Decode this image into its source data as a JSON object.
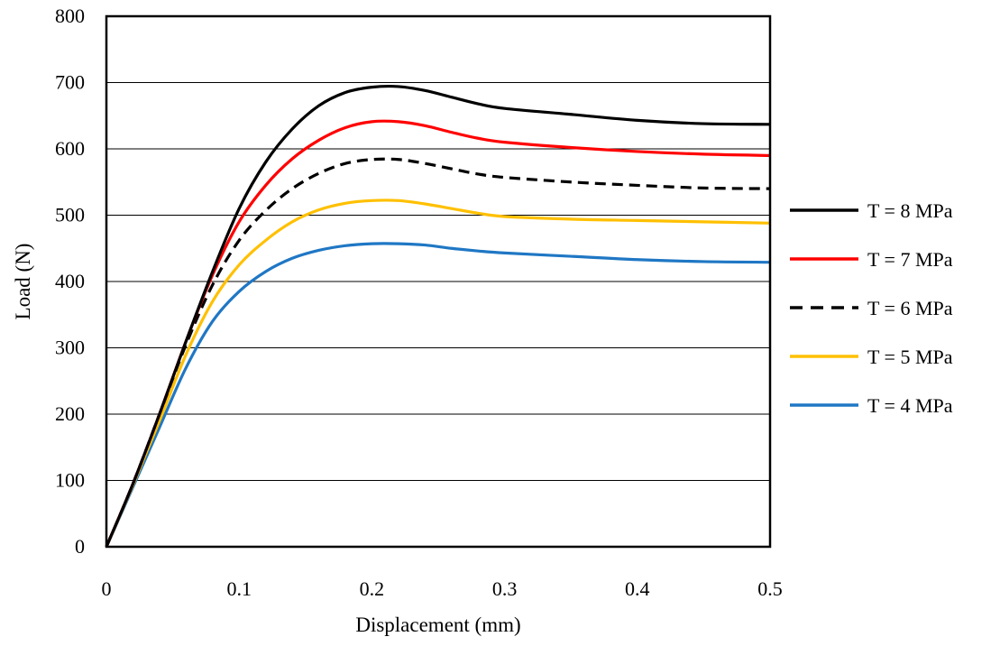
{
  "chart_data": {
    "type": "line",
    "title": "",
    "xlabel": "Displacement (mm)",
    "ylabel": "Load (N)",
    "xlim": [
      0,
      0.5
    ],
    "ylim": [
      0,
      800
    ],
    "x_ticks": [
      0,
      0.1,
      0.2,
      0.3,
      0.4,
      0.5
    ],
    "y_ticks": [
      0,
      100,
      200,
      300,
      400,
      500,
      600,
      700,
      800
    ],
    "grid": "horizontal",
    "legend_position": "right",
    "series": [
      {
        "name": "T = 8 MPa",
        "color": "#000000",
        "dash": "solid",
        "points": [
          [
            0,
            0
          ],
          [
            0.02,
            95
          ],
          [
            0.04,
            200
          ],
          [
            0.06,
            310
          ],
          [
            0.08,
            415
          ],
          [
            0.1,
            510
          ],
          [
            0.12,
            580
          ],
          [
            0.14,
            630
          ],
          [
            0.16,
            665
          ],
          [
            0.18,
            685
          ],
          [
            0.2,
            693
          ],
          [
            0.22,
            694
          ],
          [
            0.24,
            688
          ],
          [
            0.26,
            678
          ],
          [
            0.28,
            668
          ],
          [
            0.3,
            661
          ],
          [
            0.35,
            652
          ],
          [
            0.4,
            643
          ],
          [
            0.45,
            638
          ],
          [
            0.5,
            637
          ]
        ]
      },
      {
        "name": "T = 7 MPa",
        "color": "#ff0000",
        "dash": "solid",
        "points": [
          [
            0,
            0
          ],
          [
            0.02,
            95
          ],
          [
            0.04,
            200
          ],
          [
            0.06,
            310
          ],
          [
            0.08,
            410
          ],
          [
            0.1,
            490
          ],
          [
            0.12,
            545
          ],
          [
            0.14,
            585
          ],
          [
            0.16,
            613
          ],
          [
            0.18,
            632
          ],
          [
            0.2,
            641
          ],
          [
            0.22,
            641
          ],
          [
            0.24,
            635
          ],
          [
            0.26,
            625
          ],
          [
            0.28,
            616
          ],
          [
            0.3,
            610
          ],
          [
            0.35,
            602
          ],
          [
            0.4,
            596
          ],
          [
            0.45,
            592
          ],
          [
            0.5,
            590
          ]
        ]
      },
      {
        "name": "T = 6 MPa",
        "color": "#000000",
        "dash": "dashed",
        "points": [
          [
            0,
            0
          ],
          [
            0.02,
            95
          ],
          [
            0.04,
            200
          ],
          [
            0.06,
            305
          ],
          [
            0.08,
            395
          ],
          [
            0.1,
            462
          ],
          [
            0.12,
            507
          ],
          [
            0.14,
            540
          ],
          [
            0.16,
            563
          ],
          [
            0.18,
            578
          ],
          [
            0.2,
            584
          ],
          [
            0.22,
            584
          ],
          [
            0.24,
            578
          ],
          [
            0.26,
            570
          ],
          [
            0.28,
            562
          ],
          [
            0.3,
            557
          ],
          [
            0.35,
            550
          ],
          [
            0.4,
            545
          ],
          [
            0.45,
            541
          ],
          [
            0.5,
            540
          ]
        ]
      },
      {
        "name": "T = 5 MPa",
        "color": "#ffc000",
        "dash": "solid",
        "points": [
          [
            0,
            0
          ],
          [
            0.02,
            93
          ],
          [
            0.04,
            190
          ],
          [
            0.06,
            290
          ],
          [
            0.08,
            370
          ],
          [
            0.1,
            425
          ],
          [
            0.12,
            462
          ],
          [
            0.14,
            490
          ],
          [
            0.16,
            508
          ],
          [
            0.18,
            518
          ],
          [
            0.2,
            522
          ],
          [
            0.22,
            522
          ],
          [
            0.24,
            517
          ],
          [
            0.26,
            510
          ],
          [
            0.28,
            503
          ],
          [
            0.3,
            498
          ],
          [
            0.35,
            494
          ],
          [
            0.4,
            492
          ],
          [
            0.45,
            490
          ],
          [
            0.5,
            488
          ]
        ]
      },
      {
        "name": "T = 4 MPa",
        "color": "#1f77c4",
        "dash": "solid",
        "points": [
          [
            0,
            0
          ],
          [
            0.02,
            90
          ],
          [
            0.04,
            180
          ],
          [
            0.06,
            270
          ],
          [
            0.08,
            340
          ],
          [
            0.1,
            385
          ],
          [
            0.12,
            415
          ],
          [
            0.14,
            435
          ],
          [
            0.16,
            447
          ],
          [
            0.18,
            454
          ],
          [
            0.2,
            457
          ],
          [
            0.22,
            457
          ],
          [
            0.24,
            455
          ],
          [
            0.26,
            450
          ],
          [
            0.28,
            446
          ],
          [
            0.3,
            443
          ],
          [
            0.35,
            438
          ],
          [
            0.4,
            433
          ],
          [
            0.45,
            430
          ],
          [
            0.5,
            429
          ]
        ]
      }
    ]
  }
}
